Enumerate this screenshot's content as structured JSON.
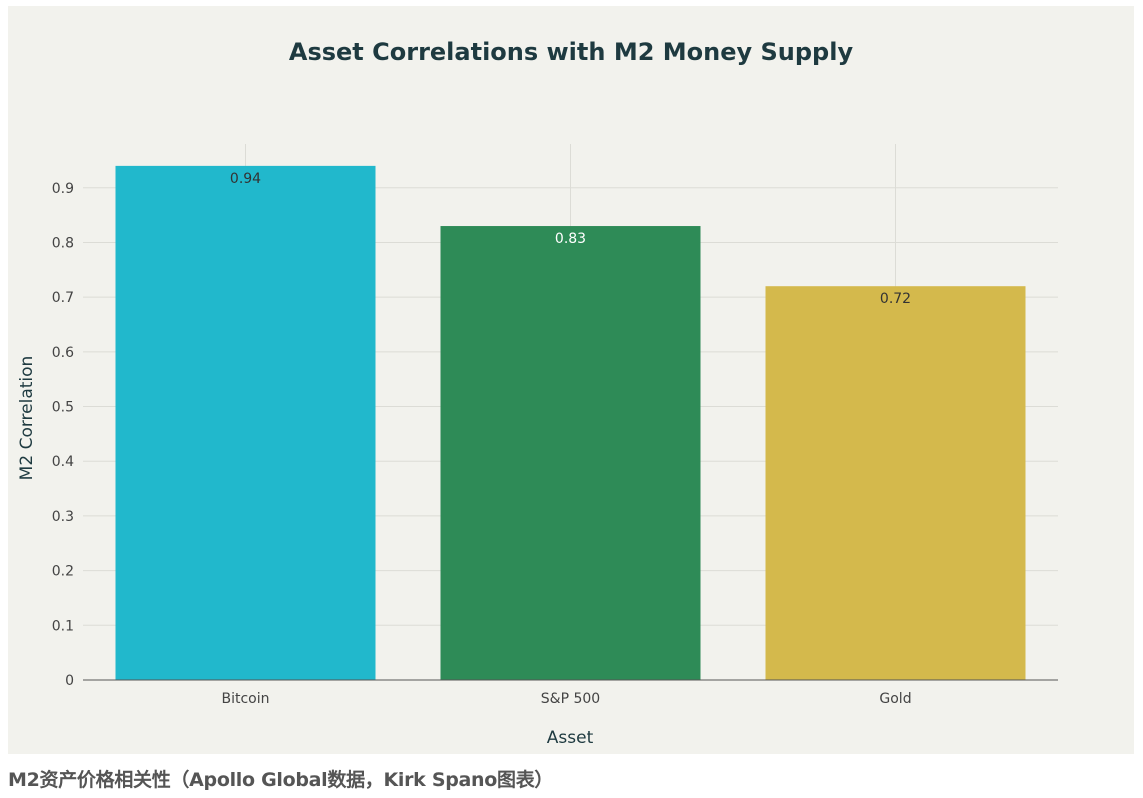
{
  "chart_data": {
    "type": "bar",
    "title": "Asset Correlations with M2 Money Supply",
    "xlabel": "Asset",
    "ylabel": "M2 Correlation",
    "categories": [
      "Bitcoin",
      "S&P 500",
      "Gold"
    ],
    "values": [
      0.94,
      0.83,
      0.72
    ],
    "data_labels": [
      "0.94",
      "0.83",
      "0.72"
    ],
    "colors": [
      "#21b8cc",
      "#2e8b57",
      "#d4b94c"
    ],
    "label_colors": [
      "#333333",
      "#ffffff",
      "#333333"
    ],
    "ylim": [
      0,
      0.98
    ],
    "yticks": [
      0,
      0.1,
      0.2,
      0.3,
      0.4,
      0.5,
      0.6,
      0.7,
      0.8,
      0.9
    ],
    "ytick_labels": [
      "0",
      "0.1",
      "0.2",
      "0.3",
      "0.4",
      "0.5",
      "0.6",
      "0.7",
      "0.8",
      "0.9"
    ],
    "grid": true,
    "legend": "none"
  },
  "caption": "M2资产价格相关性（Apollo Global数据，Kirk Spano图表）",
  "colors": {
    "panel_background": "#f2f2ed",
    "gridline": "#dcdcd6",
    "axis_line": "#555555",
    "title": "#1e3a40"
  }
}
